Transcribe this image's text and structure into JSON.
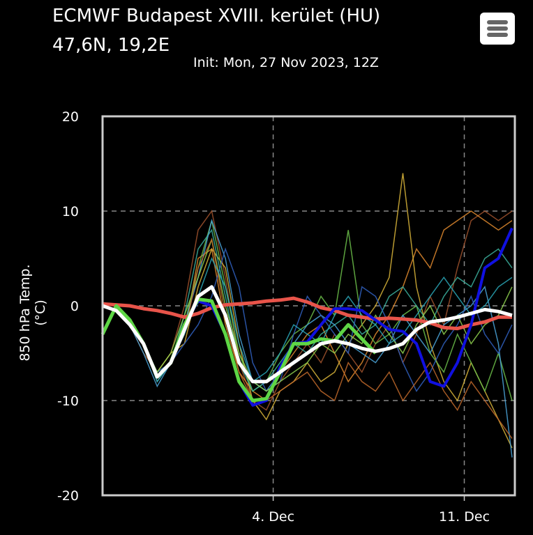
{
  "header": {
    "title": "ECMWF Budapest XVIII. kerület (HU)",
    "coords": "47,6N, 19,2E",
    "init": "Init: Mon, 27 Nov 2023, 12Z"
  },
  "menu": {
    "icon": "hamburger-menu-icon"
  },
  "chart_data": {
    "type": "line",
    "ylabel": "850 hPa Temp. (°C)",
    "ylim": [
      -20,
      20
    ],
    "yticks": [
      "20",
      "10",
      "0",
      "-10",
      "-20"
    ],
    "yticks_values": [
      20,
      10,
      0,
      -10,
      -20
    ],
    "xlim": [
      "2023-11-27T18Z",
      "2023-12-12T18Z"
    ],
    "xticks": [
      {
        "label": "4. Dec",
        "date": "2023-12-04T00Z"
      },
      {
        "label": "11. Dec",
        "date": "2023-12-11T00Z"
      }
    ],
    "grid": true,
    "x_start": "2023-11-27T18Z",
    "x_step_hours": 12,
    "series": [
      {
        "color": "#e8544a",
        "values": [
          0.2,
          0.1,
          0,
          -0.3,
          -0.5,
          -0.8,
          -1.2,
          -0.8,
          -0.2,
          0.1,
          0.2,
          0.3,
          0.5,
          0.6,
          0.8,
          0.4,
          -0.2,
          -0.5,
          -1,
          -1.2,
          -1.4,
          -1.3,
          -1.4,
          -1.5,
          -1.8,
          -2.3,
          -2.4,
          -2,
          -1.7,
          -1.2,
          -1.2
        ]
      },
      {
        "color": "#1010e0",
        "values": [
          -3,
          0,
          -1.5,
          -4,
          -7.5,
          -6,
          -2,
          0.5,
          0,
          -3,
          -8,
          -10.5,
          -10,
          -6.5,
          -4,
          -3.8,
          -2,
          -0.3,
          -0.3,
          -0.5,
          -1.5,
          -2.5,
          -2.7,
          -4,
          -8,
          -8.5,
          -6,
          -2,
          4,
          5,
          8.2
        ]
      },
      {
        "color": "#5ed645",
        "values": [
          -3,
          0,
          -1.5,
          -4,
          -7.5,
          -6,
          -2,
          0.7,
          0.5,
          -3,
          -8,
          -10,
          -9.8,
          -7,
          -4,
          -4,
          -3.5,
          -3.7,
          -2,
          -3.5,
          -5,
          null,
          null,
          null,
          null,
          null,
          null,
          null,
          null,
          null,
          null
        ]
      },
      {
        "color": "#ffffff",
        "values": [
          0,
          -0.5,
          -2,
          -4,
          -7.5,
          -6,
          -2.5,
          1,
          2,
          -1,
          -6,
          -8,
          -8,
          -7,
          -6,
          -5,
          -4,
          -3.7,
          -4,
          -4.5,
          -4.8,
          -4.5,
          -4,
          -2.5,
          -1.7,
          -1.5,
          -1.2,
          -0.8,
          -0.4,
          -0.6,
          -1
        ]
      }
    ],
    "members": [
      {
        "color": "#a0522d",
        "values": [
          0,
          -0.5,
          -2,
          -5,
          -7,
          -5,
          0,
          8,
          10,
          3,
          -6,
          -10,
          -11,
          -8,
          -6,
          -4,
          -6,
          -3,
          -5,
          -7,
          -4,
          -2,
          -6,
          -3,
          1,
          -2,
          4,
          9,
          10,
          9,
          10
        ]
      },
      {
        "color": "#e08a2e",
        "values": [
          0,
          -0.5,
          -2,
          -4,
          -8,
          -6,
          -3,
          5,
          6,
          -2,
          -7,
          -9,
          -10,
          -7,
          -5,
          -3,
          -2,
          -5,
          -8,
          -6,
          -3,
          -1,
          2,
          6,
          4,
          8,
          9,
          10,
          9,
          8,
          9
        ]
      },
      {
        "color": "#d9b53a",
        "values": [
          0,
          -0.4,
          -2,
          -4,
          -7,
          -5,
          -4,
          2,
          6,
          4,
          -4,
          -10,
          -12,
          -9,
          -8,
          -6,
          -8,
          -7,
          -4,
          -2,
          0,
          3,
          14,
          2,
          -4,
          -8,
          -10,
          -6,
          -9,
          -12,
          -15
        ]
      },
      {
        "color": "#6cbf4a",
        "values": [
          0,
          -0.5,
          -1.5,
          -4,
          -7,
          -6,
          -2,
          4,
          9,
          2,
          -5,
          -9,
          -8,
          -5,
          -3,
          -2,
          1,
          -1,
          8,
          -2,
          -4,
          -3,
          -1,
          0,
          -5,
          -7,
          -3,
          -6,
          -9,
          -5,
          -10
        ]
      },
      {
        "color": "#3cb3a0",
        "values": [
          0,
          -0.5,
          -2,
          -4,
          -8,
          -6,
          -1,
          6,
          8,
          1,
          -6,
          -9,
          -8,
          -6,
          -4,
          -5,
          -3,
          -2,
          -1,
          -3,
          -2,
          1,
          2,
          0,
          -2,
          1,
          3,
          2,
          5,
          6,
          4
        ]
      },
      {
        "color": "#4aa3d8",
        "values": [
          0,
          -0.5,
          -2,
          -5,
          -8.5,
          -6,
          -2,
          3,
          9,
          5,
          -3,
          -8,
          -9,
          -7,
          -4,
          -2,
          -1,
          -2,
          -4,
          -5,
          -6,
          -4,
          -1,
          -3,
          -5,
          -2,
          -1,
          0,
          2,
          -4,
          -16
        ]
      },
      {
        "color": "#3060c0",
        "values": [
          0,
          -0.5,
          -2,
          -4,
          -7,
          -6,
          -4,
          -2,
          1,
          6,
          2,
          -6,
          -9,
          -8,
          -3,
          1,
          -1,
          -3,
          -5,
          2,
          1,
          -2,
          -6,
          -9,
          -7,
          -4,
          -2,
          1,
          -3,
          -5,
          -2
        ]
      },
      {
        "color": "#8fd14f",
        "values": [
          0,
          -0.6,
          -2,
          -4,
          -7,
          -5,
          -1,
          3,
          7,
          0,
          -5,
          -8,
          -9,
          -8,
          -7,
          -6,
          -4,
          -5,
          -3,
          -4,
          -1,
          -3,
          -5,
          -2,
          0,
          -3,
          -1,
          -4,
          -2,
          -1,
          2
        ]
      },
      {
        "color": "#c0692a",
        "values": [
          0,
          -0.5,
          -1.8,
          -4,
          -7.5,
          -6,
          -3,
          4,
          7,
          -1,
          -7,
          -10,
          -10,
          -9,
          -8,
          -7,
          -9,
          -10,
          -6,
          -8,
          -9,
          -7,
          -10,
          -8,
          -6,
          -9,
          -11,
          -8,
          -10,
          -12,
          -14
        ]
      },
      {
        "color": "#2aa8b8",
        "values": [
          0,
          -0.5,
          -2,
          -4,
          -8,
          -6,
          -3,
          1,
          5,
          2,
          -4,
          -8,
          -7,
          -5,
          -2,
          -3,
          -4,
          -1,
          1,
          -1,
          -2,
          -4,
          -3,
          -1,
          1,
          3,
          1,
          -1,
          0,
          2,
          3
        ]
      }
    ]
  }
}
